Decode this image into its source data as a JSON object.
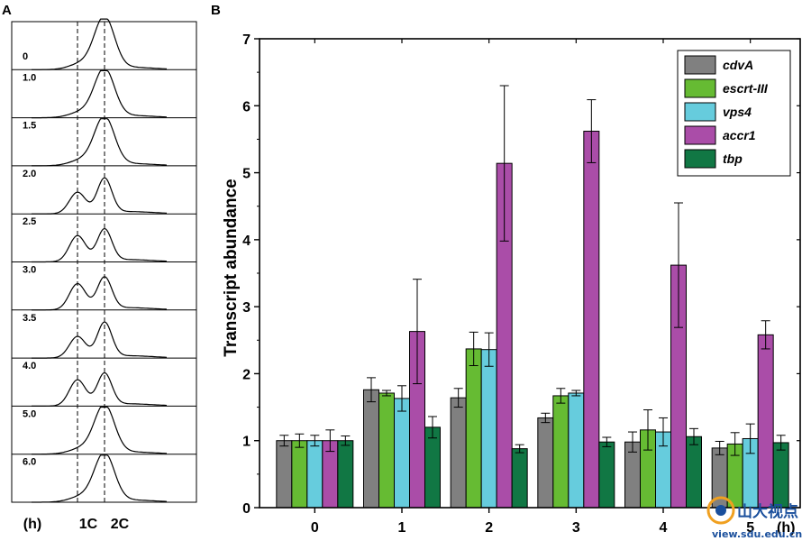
{
  "panel_a": {
    "letter": "A",
    "unit_label": "(h)",
    "marker_1c": "1C",
    "marker_2c": "2C",
    "timepoints": [
      "0",
      "1.0",
      "1.5",
      "2.0",
      "2.5",
      "3.0",
      "3.5",
      "4.0",
      "5.0",
      "6.0"
    ],
    "left_peak_share": [
      0.0,
      0.0,
      0.0,
      0.45,
      0.55,
      0.55,
      0.45,
      0.55,
      0.0,
      0.0
    ]
  },
  "panel_b": {
    "letter": "B",
    "x_unit": "(h)"
  },
  "chart_data": {
    "type": "bar",
    "categories": [
      "0",
      "1",
      "2",
      "3",
      "4",
      "5"
    ],
    "ylabel": "Transcript abundance",
    "xlabel": "(h)",
    "ylim": [
      0,
      7
    ],
    "yticks": [
      0,
      1,
      2,
      3,
      4,
      5,
      6,
      7
    ],
    "legend_position": "top-right",
    "grid": false,
    "series": [
      {
        "name": "cdvA",
        "color": "#808080",
        "values": [
          1.0,
          1.76,
          1.64,
          1.34,
          0.98,
          0.89
        ],
        "errors": [
          0.08,
          0.18,
          0.14,
          0.07,
          0.15,
          0.1
        ]
      },
      {
        "name": "escrt-III",
        "color": "#66BB33",
        "values": [
          1.0,
          1.71,
          2.37,
          1.67,
          1.16,
          0.95
        ],
        "errors": [
          0.1,
          0.04,
          0.25,
          0.11,
          0.3,
          0.17
        ]
      },
      {
        "name": "vps4",
        "color": "#66CCDD",
        "values": [
          1.0,
          1.63,
          2.36,
          1.71,
          1.13,
          1.03
        ],
        "errors": [
          0.08,
          0.19,
          0.25,
          0.04,
          0.21,
          0.22
        ]
      },
      {
        "name": "accr1",
        "color": "#AA4DA8",
        "values": [
          1.0,
          2.63,
          5.14,
          5.62,
          3.62,
          2.58
        ],
        "errors": [
          0.16,
          0.78,
          1.16,
          0.47,
          0.93,
          0.21
        ]
      },
      {
        "name": "tbp",
        "color": "#117744",
        "values": [
          1.0,
          1.2,
          0.88,
          0.98,
          1.06,
          0.97
        ],
        "errors": [
          0.07,
          0.16,
          0.06,
          0.07,
          0.12,
          0.11
        ]
      }
    ]
  },
  "watermark": {
    "text_cn": "山大视点",
    "text_url": "view.sdu.edu.cn",
    "color": "#1a4f9c"
  }
}
